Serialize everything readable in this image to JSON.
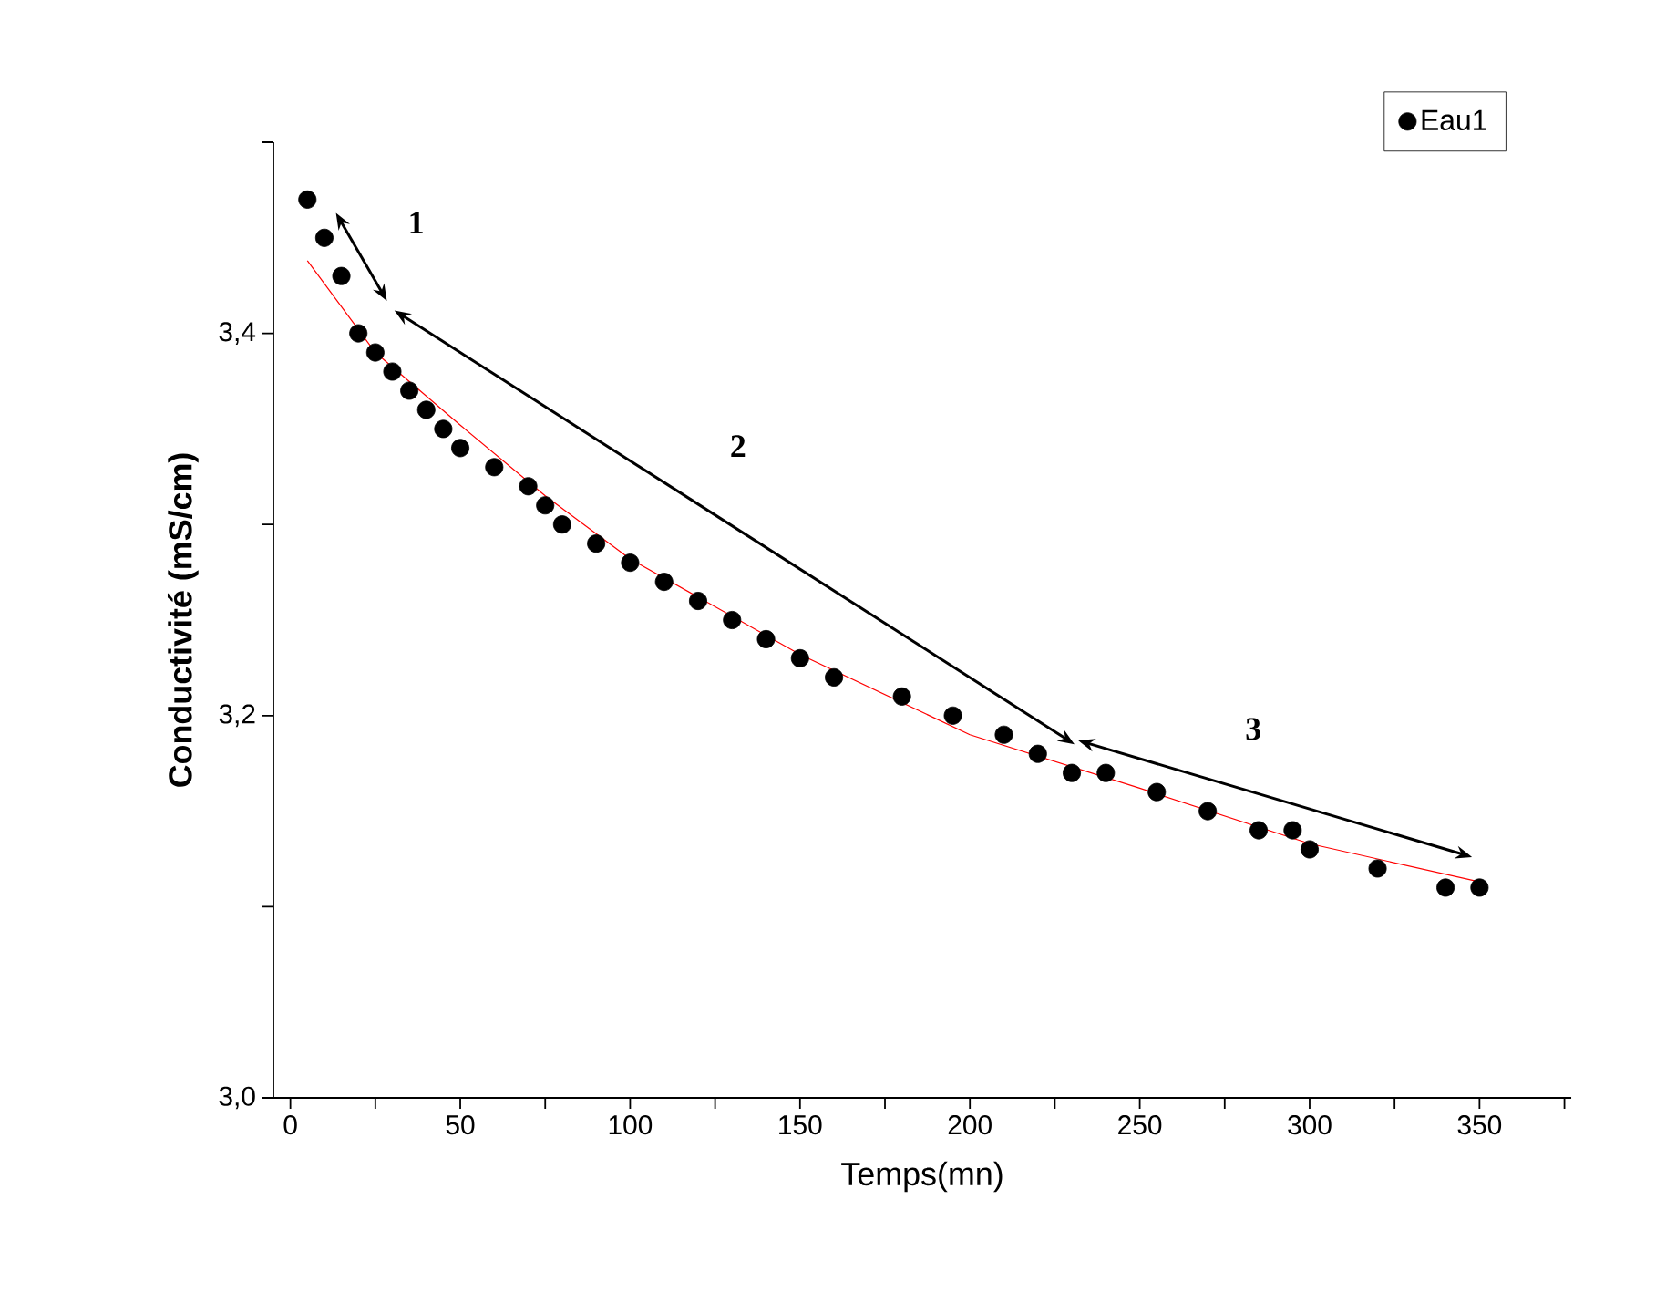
{
  "chart_data": {
    "type": "scatter",
    "xlabel": "Temps(mn)",
    "ylabel": "**Conductivité (mS/cm)**",
    "x": [
      5,
      10,
      15,
      20,
      25,
      30,
      35,
      40,
      45,
      50,
      60,
      70,
      75,
      80,
      90,
      100,
      110,
      120,
      130,
      140,
      150,
      160,
      180,
      195,
      210,
      220,
      230,
      240,
      255,
      270,
      285,
      295,
      300,
      320,
      340,
      350
    ],
    "series": [
      {
        "name": "Eau1",
        "color": "#000000",
        "values": [
          3.47,
          3.45,
          3.43,
          3.4,
          3.39,
          3.38,
          3.37,
          3.36,
          3.35,
          3.34,
          3.33,
          3.32,
          3.31,
          3.3,
          3.29,
          3.28,
          3.27,
          3.26,
          3.25,
          3.24,
          3.23,
          3.22,
          3.21,
          3.2,
          3.19,
          3.18,
          3.17,
          3.17,
          3.16,
          3.15,
          3.14,
          3.14,
          3.13,
          3.12,
          3.11,
          3.11
        ]
      },
      {
        "type": "line",
        "color": "#ff0000",
        "line_style": "solid",
        "marker": "none",
        "x": [
          5,
          25,
          50,
          75,
          100,
          150,
          200,
          250,
          300,
          350
        ],
        "values": [
          3.438,
          3.39,
          3.352,
          3.315,
          3.282,
          3.232,
          3.19,
          3.162,
          3.133,
          3.113
        ]
      }
    ],
    "annotations": [
      "1",
      "2",
      "3"
    ],
    "xlim": [
      -5,
      377
    ],
    "ylim": [
      3.0,
      3.5
    ],
    "xticks": [
      0,
      {
        "value": 25,
        "label": null
      },
      50,
      {
        "value": 75,
        "label": null
      },
      100,
      {
        "value": 125,
        "label": null
      },
      150,
      {
        "value": 175,
        "label": null
      },
      200,
      {
        "value": 225,
        "label": null
      },
      250,
      {
        "value": 275,
        "label": null
      },
      300,
      {
        "value": 325,
        "label": null
      },
      350,
      {
        "value": 375,
        "label": null
      }
    ],
    "yticks": [
      {
        "value": 3.0,
        "label": "3,0"
      },
      {
        "value": 3.1,
        "label": null
      },
      {
        "value": 3.2,
        "label": "3,2"
      },
      {
        "value": 3.3,
        "label": null
      },
      {
        "value": 3.4,
        "label": "3,4"
      },
      {
        "value": 3.5,
        "label": null
      }
    ],
    "grid": false,
    "legend": "top right",
    "marker": "circle"
  }
}
